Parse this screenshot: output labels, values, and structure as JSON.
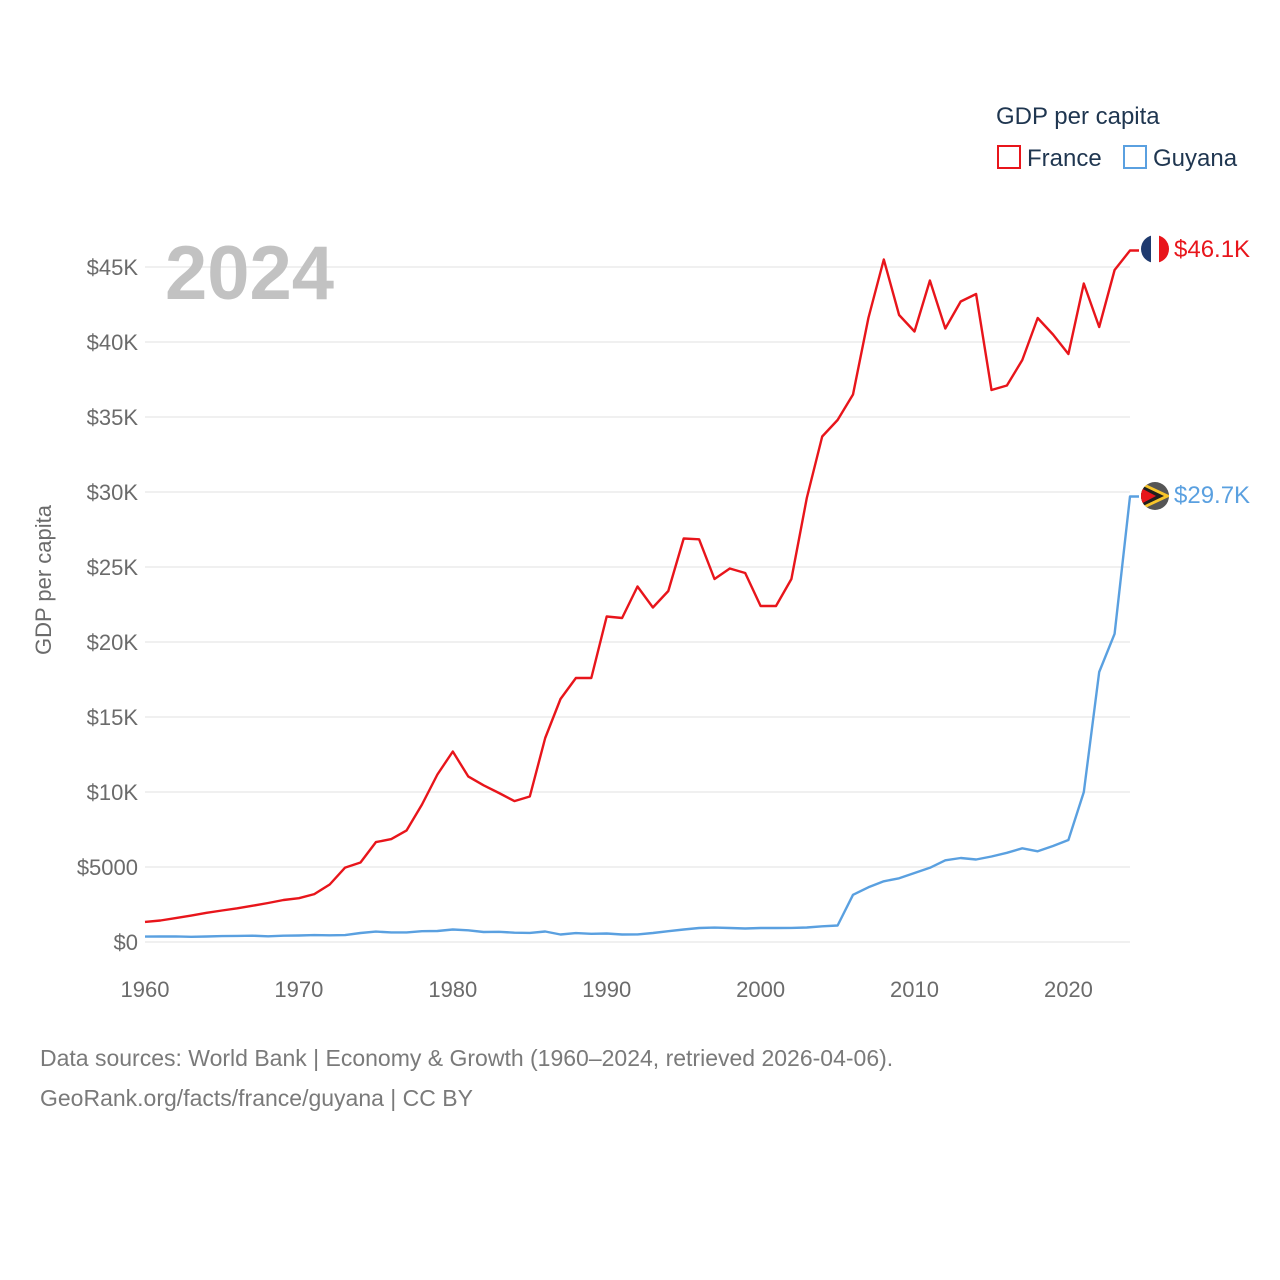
{
  "chart_data": {
    "type": "line",
    "title": "",
    "year_display": "2024",
    "ylabel": "GDP per capita",
    "xlabel": "",
    "xlim": [
      1960,
      2024
    ],
    "ylim": [
      0,
      46500
    ],
    "x_ticks": [
      {
        "value": 1960,
        "label": "1960"
      },
      {
        "value": 1970,
        "label": "1970"
      },
      {
        "value": 1980,
        "label": "1980"
      },
      {
        "value": 1990,
        "label": "1990"
      },
      {
        "value": 2000,
        "label": "2000"
      },
      {
        "value": 2010,
        "label": "2010"
      },
      {
        "value": 2020,
        "label": "2020"
      }
    ],
    "y_ticks": [
      {
        "value": 0,
        "label": "$0"
      },
      {
        "value": 5000,
        "label": "$5000"
      },
      {
        "value": 10000,
        "label": "$10K"
      },
      {
        "value": 15000,
        "label": "$15K"
      },
      {
        "value": 20000,
        "label": "$20K"
      },
      {
        "value": 25000,
        "label": "$25K"
      },
      {
        "value": 30000,
        "label": "$30K"
      },
      {
        "value": 35000,
        "label": "$35K"
      },
      {
        "value": 40000,
        "label": "$40K"
      },
      {
        "value": 45000,
        "label": "$45K"
      }
    ],
    "legend": {
      "title": "GDP per capita",
      "placement": "top-right"
    },
    "x": [
      1960,
      1961,
      1962,
      1963,
      1964,
      1965,
      1966,
      1967,
      1968,
      1969,
      1970,
      1971,
      1972,
      1973,
      1974,
      1975,
      1976,
      1977,
      1978,
      1979,
      1980,
      1981,
      1982,
      1983,
      1984,
      1985,
      1986,
      1987,
      1988,
      1989,
      1990,
      1991,
      1992,
      1993,
      1994,
      1995,
      1996,
      1997,
      1998,
      1999,
      2000,
      2001,
      2002,
      2003,
      2004,
      2005,
      2006,
      2007,
      2008,
      2009,
      2010,
      2011,
      2012,
      2013,
      2014,
      2015,
      2016,
      2017,
      2018,
      2019,
      2020,
      2021,
      2022,
      2023,
      2024
    ],
    "series": [
      {
        "name": "France",
        "color": "#e8151b",
        "flag": "france-flag-icon",
        "end_label": "$46.1K",
        "values": [
          1340,
          1430,
          1590,
          1760,
          1950,
          2100,
          2250,
          2420,
          2600,
          2800,
          2920,
          3190,
          3830,
          4960,
          5300,
          6660,
          6860,
          7440,
          9170,
          11170,
          12700,
          11040,
          10450,
          9930,
          9390,
          9700,
          13600,
          16200,
          17600,
          17600,
          21700,
          21600,
          23700,
          22300,
          23400,
          26900,
          26850,
          24200,
          24900,
          24600,
          22400,
          22400,
          24200,
          29600,
          33700,
          34800,
          36500,
          41600,
          45500,
          41800,
          40700,
          44100,
          40900,
          42700,
          43200,
          36800,
          37100,
          38800,
          41600,
          40500,
          39200,
          43900,
          41000,
          44800,
          46100
        ]
      },
      {
        "name": "Guyana",
        "color": "#5aa0e0",
        "flag": "guyana-flag-icon",
        "end_label": "$29.7K",
        "values": [
          360,
          370,
          375,
          350,
          370,
          390,
          410,
          420,
          380,
          420,
          430,
          460,
          450,
          460,
          600,
          690,
          640,
          640,
          720,
          730,
          830,
          780,
          670,
          680,
          620,
          610,
          700,
          500,
          590,
          550,
          570,
          500,
          510,
          600,
          720,
          830,
          930,
          960,
          930,
          900,
          930,
          930,
          940,
          970,
          1050,
          1100,
          3150,
          3650,
          4050,
          4250,
          4600,
          4950,
          5450,
          5600,
          5500,
          5700,
          5950,
          6250,
          6050,
          6400,
          6800,
          9990,
          18000,
          20550,
          29700
        ]
      }
    ]
  },
  "footer": {
    "line1": "Data sources: World Bank | Economy & Growth (1960–2024, retrieved 2026-04-06).",
    "line2": "GeoRank.org/facts/france/guyana | CC BY"
  }
}
